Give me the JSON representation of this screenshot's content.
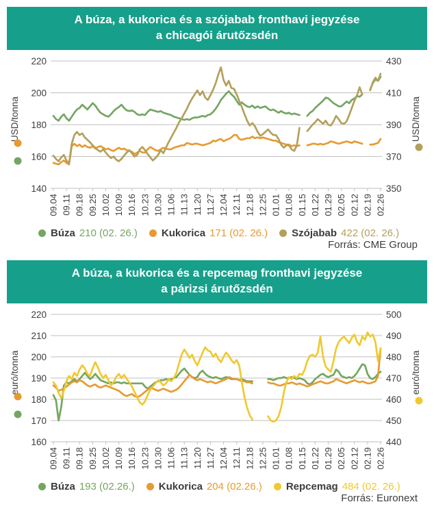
{
  "accent_color": "#16A08B",
  "text_color": "#3c3c3b",
  "grid_color": "#bfbfbf",
  "chart_data": [
    {
      "id": "chicago",
      "type": "line",
      "title_line1": "A búza, a kukorica és a szójabab fronthavi jegyzése",
      "title_line2": "a chicagói árutőzsdén",
      "source": "Forrás: CME Group",
      "left_axis": {
        "label": "USD/tonna",
        "min": 140,
        "max": 220,
        "ticks": [
          220,
          200,
          180,
          160,
          140
        ],
        "series_dots": [
          "#E79A31",
          "#74A662"
        ]
      },
      "right_axis": {
        "label": "USD/tonna",
        "min": 350,
        "max": 430,
        "ticks": [
          430,
          410,
          390,
          370,
          350
        ],
        "series_dots": [
          "#B3A05C"
        ]
      },
      "x_ticks": [
        "09.04",
        "09.11",
        "09.18",
        "09.25",
        "10.02",
        "10.09",
        "10.16",
        "10.23",
        "10.30",
        "11.06",
        "11.13",
        "11.20",
        "11.27",
        "12.04",
        "12.11",
        "12.18",
        "12.25",
        "01.01",
        "01.08",
        "01.15",
        "01.22",
        "01.29",
        "02.05",
        "02.12",
        "02.19",
        "02.26"
      ],
      "legend": [
        {
          "name": "Búza",
          "value_text": "210 (02. 26.)",
          "color": "#74A662"
        },
        {
          "name": "Kukorica",
          "value_text": "171 (02. 26.)",
          "color": "#E79A31"
        },
        {
          "name": "Szójabab",
          "value_text": "422 (02. 26.)",
          "color": "#B3A05C"
        }
      ],
      "series": [
        {
          "name": "Búza",
          "axis": "left",
          "color": "#74A662",
          "values": [
            185.5,
            183.5,
            182.5,
            185,
            186.5,
            184,
            182.5,
            185,
            187.5,
            189.5,
            190.5,
            192.5,
            191,
            189.5,
            191.5,
            193.5,
            192,
            189.5,
            187.5,
            186.5,
            185.5,
            185,
            186.5,
            188.5,
            190,
            191,
            192.5,
            190.5,
            189,
            188.5,
            189,
            188,
            186.5,
            186,
            186.5,
            186,
            188,
            189.5,
            189,
            188.5,
            188,
            188.5,
            187.5,
            187,
            186.5,
            186,
            185,
            184.5,
            184,
            183.5,
            183,
            183.5,
            183,
            184,
            184.5,
            184.5,
            185,
            185.5,
            185,
            186,
            186.5,
            188,
            190,
            192.5,
            195.5,
            197.5,
            199.5,
            201,
            199,
            197.5,
            195,
            192.5,
            194,
            192.5,
            191.5,
            191,
            192,
            190.5,
            191.5,
            190.5,
            191,
            191.5,
            190,
            189,
            189.5,
            188.5,
            187.5,
            188.5,
            187.5,
            187,
            187.5,
            186.5,
            187,
            186.5,
            186,
            null,
            null,
            185.5,
            187.5,
            188.5,
            190.5,
            192,
            193.5,
            195,
            197,
            196.5,
            195,
            193.5,
            192.5,
            191.5,
            191.5,
            193,
            194.5,
            193.5,
            195.5,
            196.5,
            198,
            197.5,
            199,
            null,
            null,
            202,
            206,
            208.5,
            207.5,
            210
          ]
        },
        {
          "name": "Kukorica",
          "axis": "left",
          "color": "#E79A31",
          "values": [
            156,
            155.5,
            155,
            156.5,
            157.5,
            156,
            155,
            166.5,
            168,
            166.5,
            167.5,
            166,
            167,
            166,
            165.5,
            166.5,
            165,
            166,
            166.5,
            165.5,
            164.5,
            165,
            164,
            163.5,
            164.5,
            165.5,
            164.5,
            165,
            164,
            163.5,
            163,
            161.5,
            162.5,
            163.5,
            162.5,
            162.5,
            164.5,
            166,
            165,
            164,
            163.5,
            164.5,
            165.5,
            165,
            164.5,
            164.5,
            165.5,
            166,
            166.5,
            167,
            167,
            168.5,
            168,
            167.5,
            168,
            168,
            167.5,
            167,
            167.5,
            168,
            168.5,
            170,
            169.5,
            170.5,
            171,
            169.5,
            170.5,
            171,
            172,
            173.5,
            173.5,
            171,
            170.5,
            171,
            171.5,
            171.5,
            172.5,
            171.5,
            172,
            171.5,
            172,
            171.5,
            171,
            170.5,
            170,
            170,
            169,
            168.5,
            168,
            167.5,
            167.5,
            166.5,
            167,
            166.5,
            167,
            null,
            null,
            167,
            167.5,
            168,
            168,
            167.5,
            168,
            167.5,
            168,
            168.5,
            169.5,
            169,
            168.5,
            168,
            168.5,
            169,
            169.5,
            169,
            168.5,
            169.5,
            169,
            168.5,
            168,
            null,
            null,
            167.5,
            167.5,
            168,
            168.5,
            171
          ]
        },
        {
          "name": "Szójabab",
          "axis": "right",
          "color": "#B3A05C",
          "values": [
            370.5,
            368.5,
            367,
            369.5,
            371,
            367.5,
            365.5,
            378,
            383.5,
            385.5,
            383.5,
            384.5,
            382,
            380.5,
            379,
            377,
            375.5,
            374,
            373,
            374.5,
            372.5,
            370.5,
            369,
            370,
            368,
            367,
            368.5,
            370.5,
            372.5,
            374,
            372,
            370,
            371,
            374.5,
            376,
            374,
            371.5,
            369.5,
            367.5,
            369,
            371,
            374,
            372,
            375.5,
            379,
            382,
            385,
            388,
            391.5,
            394,
            397,
            400,
            403.5,
            406.5,
            409,
            411.5,
            408.5,
            411,
            407,
            405.5,
            408.5,
            412,
            416,
            421.5,
            426,
            418,
            414.5,
            417.5,
            413,
            412.5,
            409,
            405,
            401,
            396.5,
            392.5,
            389.5,
            391,
            389,
            385.5,
            383,
            384,
            385.5,
            387,
            385,
            383.5,
            383.5,
            381,
            377.5,
            375.5,
            377,
            377,
            374.5,
            373.5,
            377,
            388,
            null,
            null,
            386,
            388,
            390,
            391.5,
            393.5,
            392,
            390.5,
            392.5,
            390,
            389.5,
            392,
            395.5,
            393.5,
            391,
            390.5,
            392,
            396,
            400.5,
            405,
            408.5,
            413.5,
            409,
            null,
            null,
            411.5,
            416.5,
            419.5,
            417.5,
            422
          ]
        }
      ]
    },
    {
      "id": "paris",
      "type": "line",
      "title_line1": "A búza, a kukorica és a repcemag fronthavi jegyzése",
      "title_line2": "a párizsi árutőzsdén",
      "source": "Forrás: Euronext",
      "left_axis": {
        "label": "euró/tonna",
        "min": 160,
        "max": 220,
        "ticks": [
          220,
          210,
          200,
          190,
          180,
          170,
          160
        ],
        "series_dots": [
          "#E79A31",
          "#74A662"
        ]
      },
      "right_axis": {
        "label": "euró/tonna",
        "min": 440,
        "max": 500,
        "ticks": [
          500,
          490,
          480,
          470,
          460,
          450,
          440
        ],
        "series_dots": [
          "#F0C930"
        ]
      },
      "x_ticks": [
        "09.04",
        "09.11",
        "09.18",
        "09.25",
        "10.02",
        "10.09",
        "10.16",
        "10.23",
        "10.30",
        "11.06",
        "11.13",
        "11.20",
        "11.27",
        "12.04",
        "12.11",
        "12.18",
        "12.25",
        "01.01",
        "01.08",
        "01.15",
        "01.22",
        "01.29",
        "02.05",
        "02.12",
        "02.19",
        "02.26"
      ],
      "legend": [
        {
          "name": "Búza",
          "value_text": "193 (02.26.)",
          "color": "#74A662"
        },
        {
          "name": "Kukorica",
          "value_text": "204 (02.26.)",
          "color": "#E79A31"
        },
        {
          "name": "Repcemag",
          "value_text": "484 (02. 26.)",
          "color": "#F0C930"
        }
      ],
      "series": [
        {
          "name": "Búza",
          "axis": "left",
          "color": "#74A662",
          "values": [
            182,
            179.5,
            170,
            176.5,
            186.5,
            188,
            187.5,
            188.5,
            189.5,
            188.5,
            189.5,
            191,
            192.5,
            191,
            189.5,
            190.5,
            192,
            190.5,
            189,
            188.5,
            188,
            187.5,
            188,
            187.5,
            188,
            188,
            187.5,
            188,
            187.5,
            187.5,
            187.5,
            187.5,
            187.5,
            187.5,
            187.5,
            186,
            185,
            186,
            187,
            188,
            188.5,
            189,
            189,
            189.5,
            189,
            189.5,
            190,
            190.5,
            192,
            193.5,
            194.5,
            193,
            191.5,
            190.5,
            190,
            190.5,
            192.5,
            193.5,
            192,
            191,
            190.5,
            190,
            190.5,
            190,
            189.5,
            190,
            190.5,
            190,
            189.5,
            189.5,
            189.5,
            189,
            189.5,
            189,
            188.5,
            188.5,
            188.5,
            null,
            null,
            null,
            null,
            null,
            189.5,
            189.5,
            189,
            189.5,
            190,
            190,
            190.5,
            190,
            190,
            190.5,
            190,
            189.5,
            190,
            189.5,
            189,
            187.5,
            187,
            188,
            189.5,
            190.5,
            191.5,
            192,
            191,
            190.5,
            191,
            191.5,
            194,
            193,
            191,
            190.5,
            190,
            190.5,
            190,
            191,
            192.5,
            194.5,
            196.5,
            196,
            192,
            190,
            189.5,
            190.5,
            192,
            193
          ]
        },
        {
          "name": "Kukorica",
          "axis": "left",
          "color": "#E79A31",
          "values": [
            186.5,
            185.5,
            184,
            184.5,
            185,
            186,
            187,
            188,
            188.5,
            188,
            189,
            188.5,
            187.5,
            186.5,
            186,
            186.5,
            187,
            186,
            185.5,
            186,
            186.5,
            186,
            185.5,
            185,
            184.5,
            184,
            183,
            182,
            181.5,
            182,
            182.5,
            181.5,
            181,
            181.5,
            182.5,
            183.5,
            184.5,
            185.5,
            185,
            184.5,
            184,
            184.5,
            185,
            184.5,
            184,
            183.5,
            184,
            184.5,
            185.5,
            187,
            188.5,
            190,
            191.5,
            190.5,
            189.5,
            189,
            189.5,
            189,
            188.5,
            188,
            188.5,
            188,
            187.5,
            188,
            188.5,
            189,
            189.5,
            190.5,
            190,
            189.5,
            189.5,
            189,
            188.5,
            188.5,
            188,
            188,
            187.5,
            null,
            null,
            null,
            null,
            null,
            188,
            187.5,
            187.5,
            187,
            186.5,
            186.5,
            187,
            187.5,
            187.5,
            188,
            187.5,
            187,
            187.5,
            187,
            186.5,
            186,
            186.5,
            187,
            187.5,
            188,
            188.5,
            188,
            187.5,
            187.5,
            188,
            188.5,
            189.5,
            189,
            188.5,
            188,
            187.5,
            188,
            188.5,
            189,
            188.5,
            188,
            188.5,
            188,
            187.5,
            187.5,
            188,
            188.5,
            191,
            204
          ]
        },
        {
          "name": "Repcemag",
          "axis": "right",
          "color": "#F0C930",
          "values": [
            468,
            466.5,
            463,
            460.5,
            464,
            468.5,
            471,
            469.5,
            472.5,
            471,
            474,
            476,
            474.5,
            472,
            471,
            474.5,
            477.5,
            475,
            472,
            470,
            471.5,
            469,
            466.5,
            468,
            470.5,
            472,
            470,
            471.5,
            469.5,
            468,
            466,
            463.5,
            461,
            458.5,
            457.5,
            459,
            462,
            464.5,
            466,
            467.5,
            469,
            468,
            466.5,
            467.5,
            469.5,
            468.5,
            470,
            472.5,
            477,
            481,
            483.5,
            481.5,
            479.5,
            481,
            478,
            476,
            479,
            482,
            484.5,
            483,
            482.5,
            480,
            481.5,
            479,
            477.5,
            480,
            482,
            480.5,
            478.5,
            477,
            478.5,
            476,
            468,
            461,
            456,
            452.5,
            450.5,
            null,
            null,
            null,
            null,
            null,
            452,
            450,
            449.5,
            450,
            452,
            456,
            463,
            468,
            470.5,
            469.5,
            471,
            470,
            472,
            471.5,
            474,
            478,
            480.5,
            481,
            480,
            482,
            489.5,
            480,
            475.5,
            474,
            473,
            478,
            484,
            487,
            488.5,
            489.5,
            488,
            486.5,
            489,
            490.5,
            487,
            485.5,
            489.5,
            488,
            491.5,
            489.5,
            490.5,
            487,
            478,
            484
          ]
        }
      ]
    }
  ]
}
